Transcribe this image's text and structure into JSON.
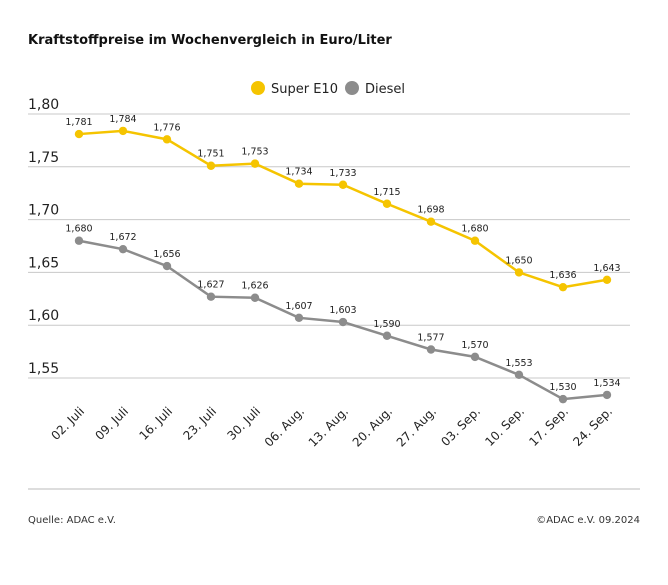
{
  "chart_data": {
    "type": "line",
    "title": "Kraftstoffpreise im Wochenvergleich in Euro/Liter",
    "categories": [
      "02. Juli",
      "09. Juli",
      "16. Juli",
      "23. Juli",
      "30. Juli",
      "06. Aug.",
      "13. Aug.",
      "20. Aug.",
      "27. Aug.",
      "03. Sep.",
      "10. Sep.",
      "17. Sep.",
      "24. Sep."
    ],
    "series": [
      {
        "name": "Super E10",
        "color": "#f5c400",
        "values": [
          1.781,
          1.784,
          1.776,
          1.751,
          1.753,
          1.734,
          1.733,
          1.715,
          1.698,
          1.68,
          1.65,
          1.636,
          1.643
        ],
        "labels": [
          "1,781",
          "1,784",
          "1,776",
          "1,751",
          "1,753",
          "1,734",
          "1,733",
          "1,715",
          "1,698",
          "1,680",
          "1,650",
          "1,636",
          "1,643"
        ]
      },
      {
        "name": "Diesel",
        "color": "#8c8c8c",
        "values": [
          1.68,
          1.672,
          1.656,
          1.627,
          1.626,
          1.607,
          1.603,
          1.59,
          1.577,
          1.57,
          1.553,
          1.53,
          1.534
        ],
        "labels": [
          "1,680",
          "1,672",
          "1,656",
          "1,627",
          "1,626",
          "1,607",
          "1,603",
          "1,590",
          "1,577",
          "1,570",
          "1,553",
          "1,530",
          "1,534"
        ]
      }
    ],
    "yticks": [
      1.8,
      1.75,
      1.7,
      1.65,
      1.6,
      1.55
    ],
    "ytick_labels": [
      "1,80",
      "1,75",
      "1,70",
      "1,65",
      "1,60",
      "1,55"
    ],
    "ylim": [
      1.52,
      1.8
    ],
    "grid": true,
    "legend": "top-center"
  },
  "footer": {
    "source": "Quelle: ADAC e.V.",
    "copyright": "©ADAC e.V. 09.2024"
  }
}
